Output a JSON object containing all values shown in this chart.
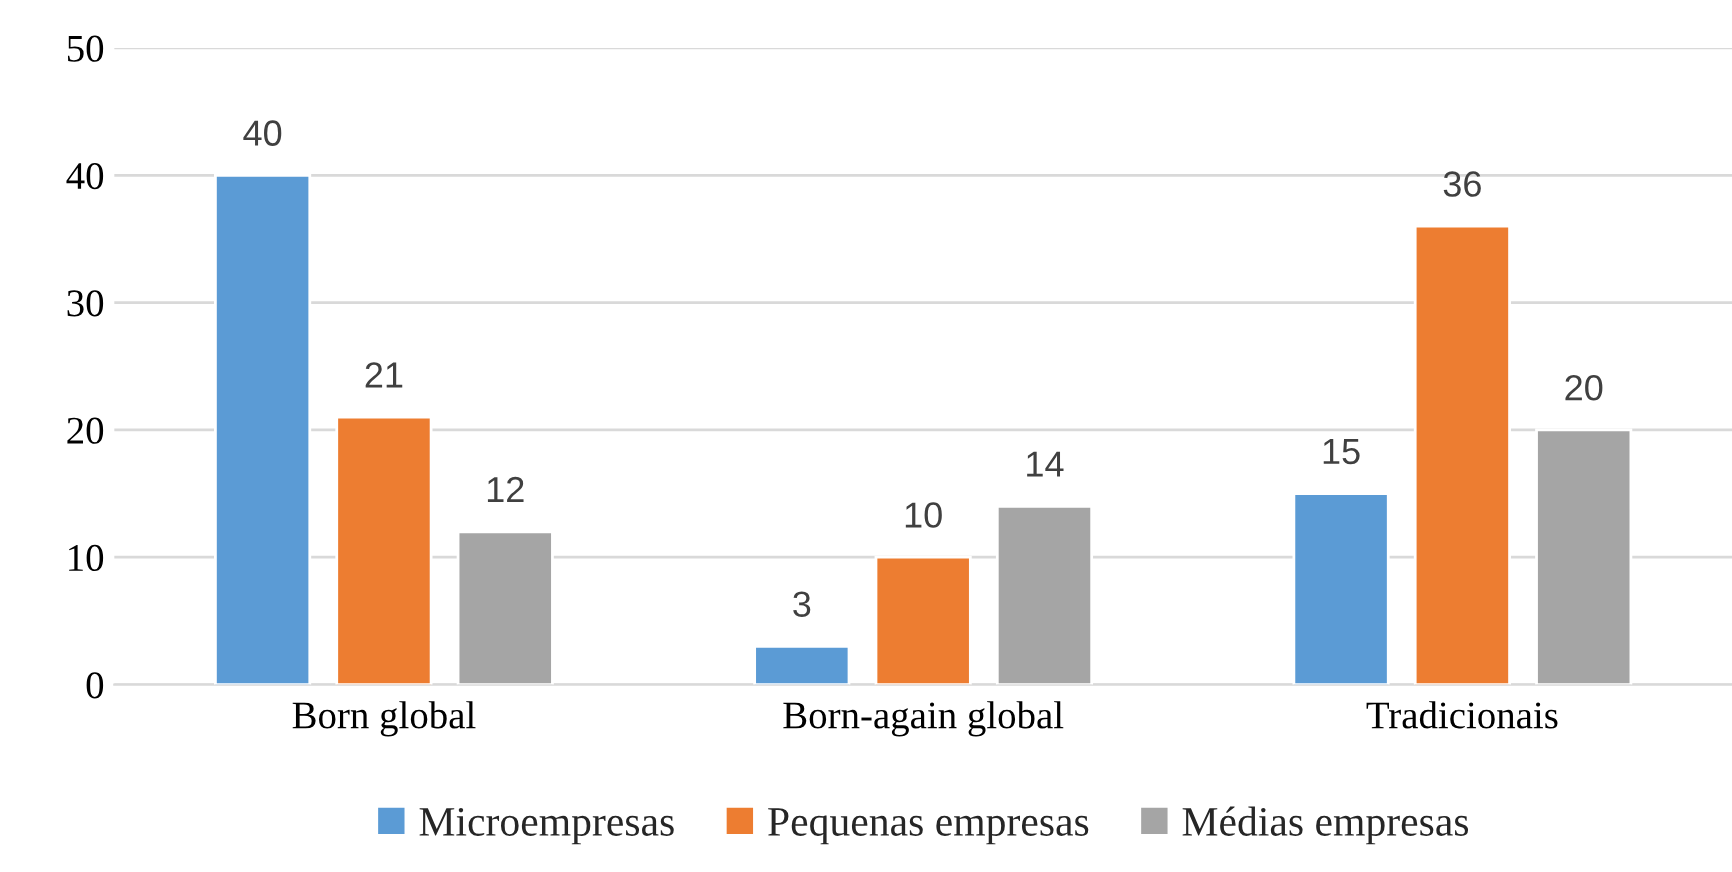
{
  "chart_data": {
    "type": "bar",
    "categories": [
      "Born global",
      "Born-again global",
      "Tradicionais"
    ],
    "series": [
      {
        "name": "Microempresas",
        "color": "#5b9bd5",
        "values": [
          40,
          3,
          15
        ]
      },
      {
        "name": "Pequenas empresas",
        "color": "#ed7d31",
        "values": [
          21,
          10,
          36
        ]
      },
      {
        "name": "Médias empresas",
        "color": "#a5a5a5",
        "values": [
          12,
          14,
          20
        ]
      }
    ],
    "ylim": [
      0,
      50
    ],
    "yticks": [
      0,
      10,
      20,
      30,
      40,
      50
    ],
    "grid": "y",
    "legend": "bottom",
    "data_labels": true
  }
}
